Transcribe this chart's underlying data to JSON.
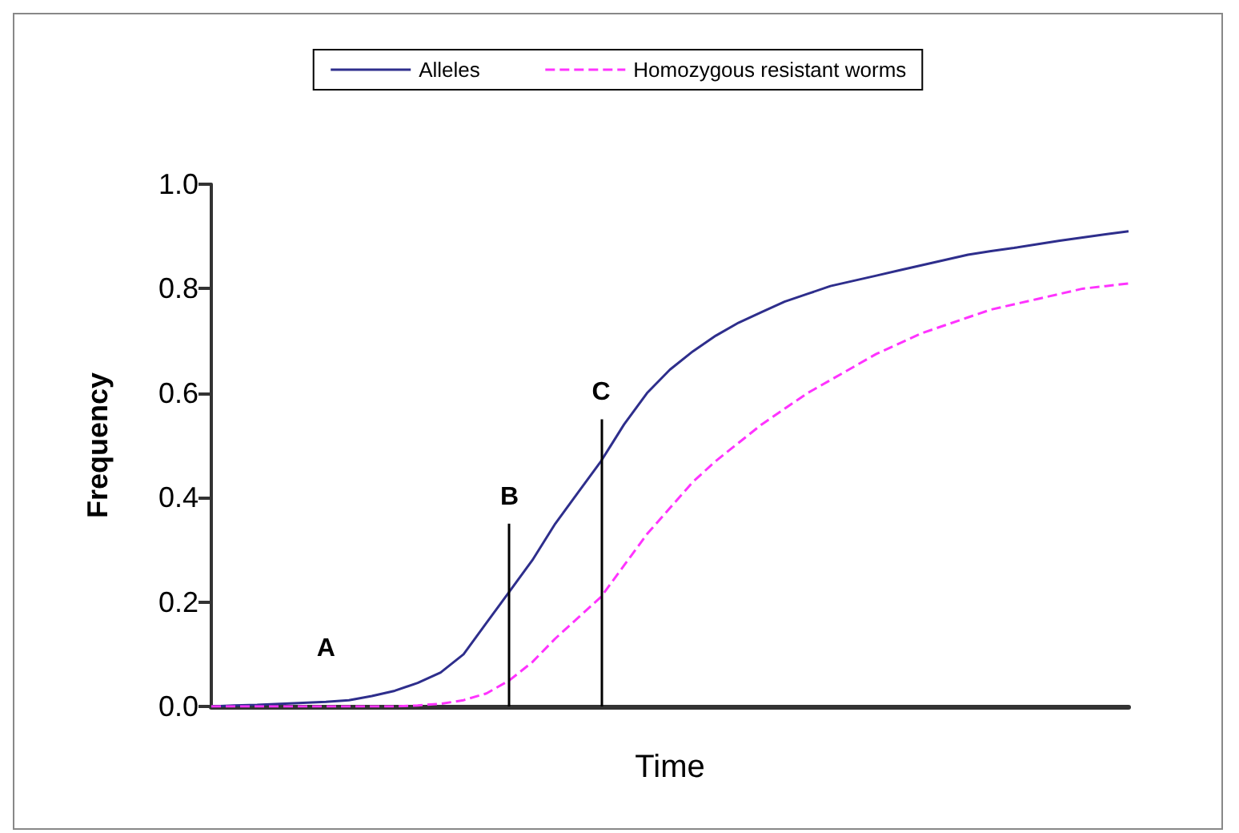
{
  "chart_data": {
    "type": "line",
    "xlabel": "Time",
    "ylabel": "Frequency",
    "categories": [
      null,
      null,
      null,
      null,
      null,
      null,
      null,
      null,
      null,
      null,
      null,
      null,
      null,
      null,
      null,
      null,
      null,
      null,
      null,
      null,
      null,
      null,
      null,
      null,
      null,
      null,
      null,
      null,
      null,
      null,
      null,
      null,
      null,
      null,
      null,
      null,
      null,
      null,
      null,
      null,
      null
    ],
    "ylim": [
      0,
      1.0
    ],
    "yticks": [
      {
        "value": 0,
        "label": "0.0"
      },
      {
        "value": 0.2,
        "label": "0.2"
      },
      {
        "value": 0.4,
        "label": "0.4"
      },
      {
        "value": 0.6,
        "label": "0.6"
      },
      {
        "value": 0.8,
        "label": "0.8"
      },
      {
        "value": 1.0,
        "label": "1.0"
      }
    ],
    "tick_labels": "y",
    "grid": false,
    "legend": "top",
    "marker": "none",
    "series": [
      {
        "name": "Alleles",
        "color": "#2e2e8c",
        "line_style": "solid",
        "values": [
          0,
          0.002,
          0.003,
          0.005,
          0.007,
          0.009,
          0.012,
          0.02,
          0.03,
          0.045,
          0.065,
          0.1,
          0.16,
          0.22,
          0.28,
          0.35,
          0.41,
          0.47,
          0.54,
          0.6,
          0.645,
          0.68,
          0.71,
          0.735,
          0.755,
          0.775,
          0.79,
          0.805,
          0.815,
          0.825,
          0.835,
          0.845,
          0.855,
          0.865,
          0.872,
          0.878,
          0.885,
          0.892,
          0.898,
          0.904,
          0.91
        ]
      },
      {
        "name": "Homozygous resistant worms",
        "color": "#ff33ff",
        "line_style": "dashed",
        "values": [
          0,
          0,
          0,
          0,
          0,
          0,
          0,
          0,
          0,
          0.002,
          0.005,
          0.012,
          0.025,
          0.05,
          0.085,
          0.13,
          0.17,
          0.21,
          0.27,
          0.33,
          0.38,
          0.43,
          0.47,
          0.505,
          0.54,
          0.57,
          0.6,
          0.625,
          0.65,
          0.675,
          0.695,
          0.715,
          0.73,
          0.745,
          0.76,
          0.77,
          0.78,
          0.79,
          0.8,
          0.805,
          0.81
        ]
      }
    ],
    "annotations": [
      "A",
      "B",
      "C"
    ]
  }
}
